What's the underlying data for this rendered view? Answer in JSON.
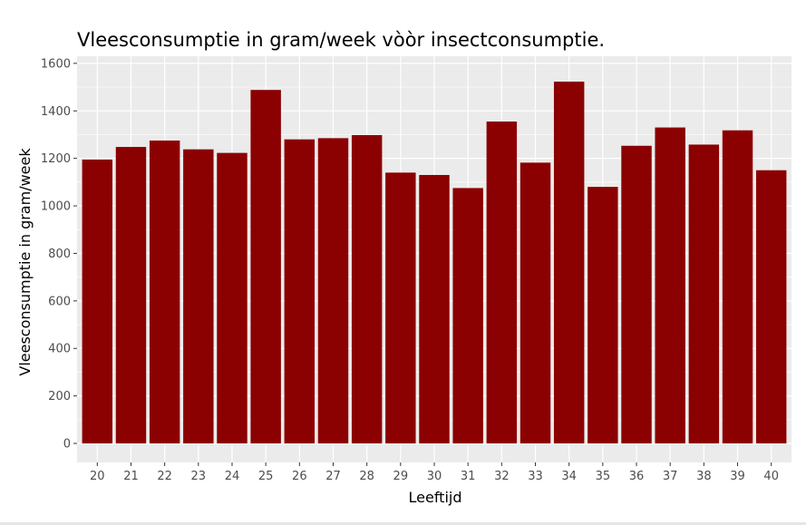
{
  "chart_data": {
    "type": "bar",
    "title": "Vleesconsumptie in gram/week vòòr insectconsumptie.",
    "xlabel": "Leeftijd",
    "ylabel": "Vleesconsumptie in gram/week",
    "categories": [
      "20",
      "21",
      "22",
      "23",
      "24",
      "25",
      "26",
      "27",
      "28",
      "29",
      "30",
      "31",
      "32",
      "33",
      "34",
      "35",
      "36",
      "37",
      "38",
      "39",
      "40"
    ],
    "values": [
      1195,
      1248,
      1275,
      1238,
      1223,
      1488,
      1280,
      1285,
      1298,
      1140,
      1130,
      1075,
      1355,
      1182,
      1523,
      1080,
      1253,
      1330,
      1258,
      1318,
      1150
    ],
    "ylim": [
      -80,
      1630
    ],
    "yticks": [
      0,
      200,
      400,
      600,
      800,
      1000,
      1200,
      1400,
      1600
    ],
    "bar_color": "#8b0000",
    "panel_background": "#ebebeb",
    "grid": true,
    "legend": "none"
  }
}
